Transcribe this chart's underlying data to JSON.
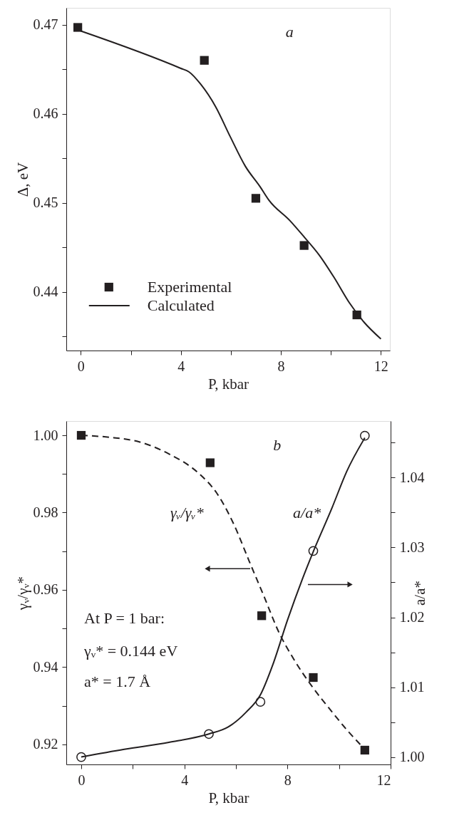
{
  "chart_data": [
    {
      "type": "line",
      "xlabel": "P, kbar",
      "ylabel": "Δ, eV",
      "annotations": [
        "a"
      ],
      "legend": "bottom left",
      "xlim": [
        -0.58,
        12.36
      ],
      "ylim": [
        0.4334,
        0.4719
      ],
      "xticks": [
        0,
        {
          "value": 2,
          "label": null
        },
        4,
        {
          "value": 6,
          "label": null
        },
        8,
        {
          "value": 10,
          "label": null
        },
        12
      ],
      "yticks": [
        {
          "value": 0.435,
          "label": null
        },
        0.44,
        {
          "value": 0.445,
          "label": null
        },
        0.45,
        {
          "value": 0.455,
          "label": null
        },
        0.46,
        {
          "value": 0.465,
          "label": null
        },
        0.47
      ],
      "series": [
        {
          "name": "Experimental",
          "type": "scatter",
          "marker": "square",
          "color": "#231f20",
          "x": [
            -0.12,
            4.94,
            7.0,
            8.93,
            11.04
          ],
          "values": [
            0.4697,
            0.466,
            0.4505,
            0.4452,
            0.4374
          ]
        },
        {
          "name": "Calculated",
          "line_style": "solid",
          "color": "#231f20",
          "x": [
            0,
            4,
            4.33,
            4.8,
            5.39,
            5.98,
            6.58,
            7.17,
            7.52,
            8.36,
            8.95,
            9.54,
            10.13,
            10.73,
            11.32,
            12
          ],
          "values": [
            0.4693,
            0.4651,
            0.4647,
            0.4633,
            0.4608,
            0.4574,
            0.4541,
            0.4518,
            0.4503,
            0.448,
            0.4461,
            0.4441,
            0.4416,
            0.4388,
            0.4366,
            0.4347
          ]
        }
      ]
    },
    {
      "type": "line",
      "xlabel": "P, kbar",
      "ylabel": "γᵥ/γᵥ*",
      "y2label": "a/a*",
      "annotations": [
        "b",
        "At P = 1 bar:",
        "γᵥ* = 0.144 eV",
        "a* = 1.7 Å"
      ],
      "legend": false,
      "xlim": [
        -0.58,
        12.0
      ],
      "ylim": [
        0.9148,
        1.0037
      ],
      "y2lim": [
        0.99894,
        1.0481
      ],
      "xticks": [
        0,
        {
          "value": 2,
          "label": null
        },
        4,
        {
          "value": 6,
          "label": null
        },
        8,
        {
          "value": 10,
          "label": null
        },
        12
      ],
      "yticks": [
        0.92,
        {
          "value": 0.93,
          "label": null
        },
        0.94,
        {
          "value": 0.95,
          "label": null
        },
        0.96,
        {
          "value": 0.97,
          "label": null
        },
        0.98,
        {
          "value": 0.99,
          "label": null
        },
        {
          "value": 1.0,
          "label": "1.00"
        }
      ],
      "y2ticks": [
        {
          "value": 1.0,
          "label": "1.00"
        },
        {
          "value": 1.005,
          "label": null
        },
        1.01,
        {
          "value": 1.015,
          "label": null
        },
        1.02,
        {
          "value": 1.025,
          "label": null
        },
        1.03,
        {
          "value": 1.035,
          "label": null
        },
        1.04,
        {
          "value": 1.045,
          "label": null
        }
      ],
      "series": [
        {
          "type": "scatter",
          "marker": "square",
          "color": "#231f20",
          "x": [
            0,
            5.0,
            7.0,
            9.0,
            11.0
          ],
          "values": [
            1.0,
            0.9929,
            0.9533,
            0.9373,
            0.9185
          ]
        },
        {
          "name": "γᵥ/γᵥ*",
          "line_style": "dashed",
          "color": "#231f20",
          "x": [
            0,
            1.09,
            2.25,
            3.4,
            4.55,
            5.24,
            5.93,
            6.51,
            7.09,
            7.66,
            8.23,
            8.93,
            9.74,
            10.31,
            10.89
          ],
          "values": [
            1.0,
            0.9995,
            0.9983,
            0.9952,
            0.9902,
            0.9852,
            0.9768,
            0.9675,
            0.9583,
            0.9491,
            0.9422,
            0.9352,
            0.9283,
            0.9237,
            0.9195
          ]
        },
        {
          "type": "scatter",
          "marker": "circle",
          "axis": "y2",
          "color": "#231f20",
          "x": [
            0,
            4.95,
            6.95,
            9.0,
            11.0
          ],
          "values": [
            1.0,
            1.0033,
            1.0079,
            1.0295,
            1.046
          ]
        },
        {
          "name": "a/a*",
          "axis": "y2",
          "line_style": "solid",
          "color": "#231f20",
          "x": [
            0,
            1.67,
            3.4,
            4.95,
            5.7,
            6.39,
            6.95,
            7.43,
            8.0,
            8.58,
            9.0,
            9.73,
            10.3,
            11.0
          ],
          "values": [
            1.0,
            1.0011,
            1.0021,
            1.0033,
            1.0043,
            1.0064,
            1.0089,
            1.0132,
            1.0196,
            1.0255,
            1.0294,
            1.0357,
            1.0409,
            1.0457
          ]
        }
      ]
    }
  ]
}
